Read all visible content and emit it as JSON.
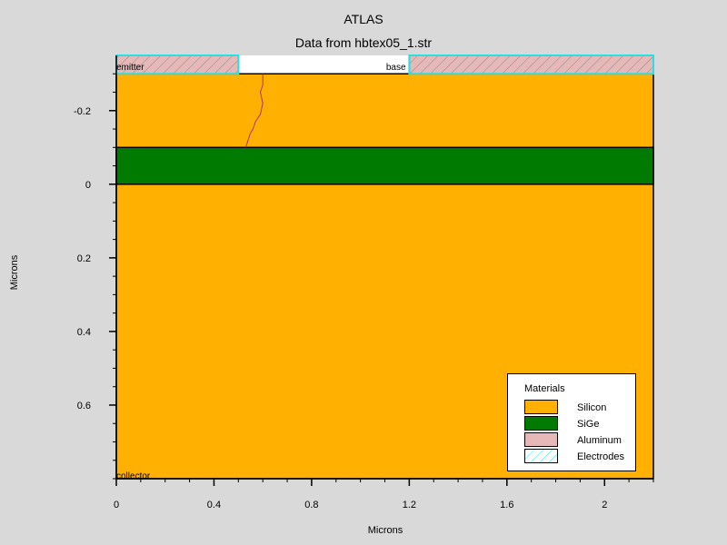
{
  "chart_data": {
    "type": "structure",
    "title": "ATLAS",
    "subtitle": "Data from hbtex05_1.str",
    "xlabel": "Microns",
    "ylabel": "Microns",
    "xlim": [
      0,
      2.2
    ],
    "ylim": [
      -0.35,
      0.8
    ],
    "y_inverted": true,
    "x_ticks": [
      {
        "v": 0,
        "label": "0"
      },
      {
        "v": 0.4,
        "label": "0.4"
      },
      {
        "v": 0.8,
        "label": "0.8"
      },
      {
        "v": 1.2,
        "label": "1.2"
      },
      {
        "v": 1.6,
        "label": "1.6"
      },
      {
        "v": 2,
        "label": "2"
      }
    ],
    "x_minor_step": 0.1,
    "y_ticks": [
      {
        "v": -0.2,
        "label": "-0.2"
      },
      {
        "v": 0,
        "label": "0"
      },
      {
        "v": 0.2,
        "label": "0.2"
      },
      {
        "v": 0.4,
        "label": "0.4"
      },
      {
        "v": 0.6,
        "label": "0.6"
      }
    ],
    "y_minor_step": 0.05,
    "regions": [
      {
        "material": "Silicon",
        "x": [
          0,
          2.2
        ],
        "y": [
          -0.3,
          0.8
        ],
        "color": "#ffb000"
      },
      {
        "material": "SiGe",
        "x": [
          0,
          2.2
        ],
        "y": [
          -0.1,
          0.0
        ],
        "color": "#007a00"
      },
      {
        "material": "Aluminum",
        "x": [
          0,
          0.5
        ],
        "y": [
          -0.35,
          -0.3
        ],
        "color": "#e6b8b8",
        "hatch": true
      },
      {
        "material": "Aluminum",
        "x": [
          1.2,
          2.2
        ],
        "y": [
          -0.35,
          -0.3
        ],
        "color": "#e6b8b8",
        "hatch": true
      }
    ],
    "electrodes": [
      {
        "name": "emitter",
        "x": [
          0,
          0.5
        ],
        "y": [
          -0.35,
          -0.3
        ],
        "label_x": 0.0,
        "label_y": -0.32
      },
      {
        "name": "base",
        "x": [
          1.2,
          2.2
        ],
        "y": [
          -0.35,
          -0.3
        ],
        "label_x": 1.105,
        "label_y": -0.32
      },
      {
        "name": "collector",
        "label_x": 0.0,
        "label_y": 0.79
      }
    ],
    "electrode_color": "#29e0e0",
    "junction_line": {
      "color": "#b03070",
      "points": [
        [
          0.6,
          -0.3
        ],
        [
          0.6,
          -0.27
        ],
        [
          0.59,
          -0.25
        ],
        [
          0.6,
          -0.22
        ],
        [
          0.59,
          -0.19
        ],
        [
          0.58,
          -0.18
        ],
        [
          0.57,
          -0.17
        ],
        [
          0.56,
          -0.15
        ],
        [
          0.55,
          -0.14
        ],
        [
          0.545,
          -0.13
        ],
        [
          0.54,
          -0.12
        ],
        [
          0.53,
          -0.1
        ]
      ]
    },
    "legend": {
      "position": "bottom-right",
      "title": "Materials",
      "items": [
        {
          "label": "Silicon",
          "color": "#ffb000",
          "pattern": "solid"
        },
        {
          "label": "SiGe",
          "color": "#007a00",
          "pattern": "solid"
        },
        {
          "label": "Aluminum",
          "color": "#e6b8b8",
          "pattern": "solid"
        },
        {
          "label": "Electrodes",
          "color": "#29e0e0",
          "pattern": "hatch"
        }
      ]
    }
  }
}
